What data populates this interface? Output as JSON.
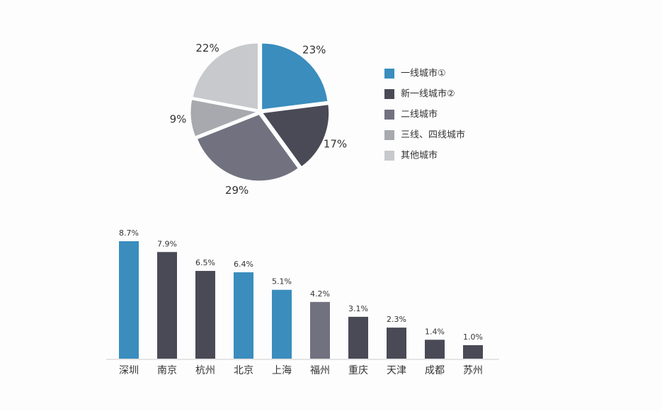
{
  "chart_data": [
    {
      "type": "pie",
      "categories": [
        "一线城市①",
        "新一线城市②",
        "二线城市",
        "三线、四线城市",
        "其他城市"
      ],
      "values": [
        23,
        17,
        29,
        9,
        22
      ],
      "value_labels": [
        "23%",
        "17%",
        "29%",
        "9%",
        "22%"
      ],
      "colors": [
        "#3a8dbd",
        "#4a4956",
        "#72717f",
        "#a7a9ae",
        "#c8c9cd"
      ],
      "legend": "right"
    },
    {
      "type": "bar",
      "categories": [
        "深圳",
        "南京",
        "杭州",
        "北京",
        "上海",
        "福州",
        "重庆",
        "天津",
        "成都",
        "苏州"
      ],
      "values": [
        8.7,
        7.9,
        6.5,
        6.4,
        5.1,
        4.2,
        3.1,
        2.3,
        1.4,
        1.0
      ],
      "value_labels": [
        "8.7%",
        "7.9%",
        "6.5%",
        "6.4%",
        "5.1%",
        "4.2%",
        "3.1%",
        "2.3%",
        "1.4%",
        "1.0%"
      ],
      "colors": [
        "#3a8dbd",
        "#4a4956",
        "#4a4956",
        "#3a8dbd",
        "#3a8dbd",
        "#72717f",
        "#4a4956",
        "#4a4956",
        "#4a4956",
        "#4a4956"
      ]
    }
  ]
}
